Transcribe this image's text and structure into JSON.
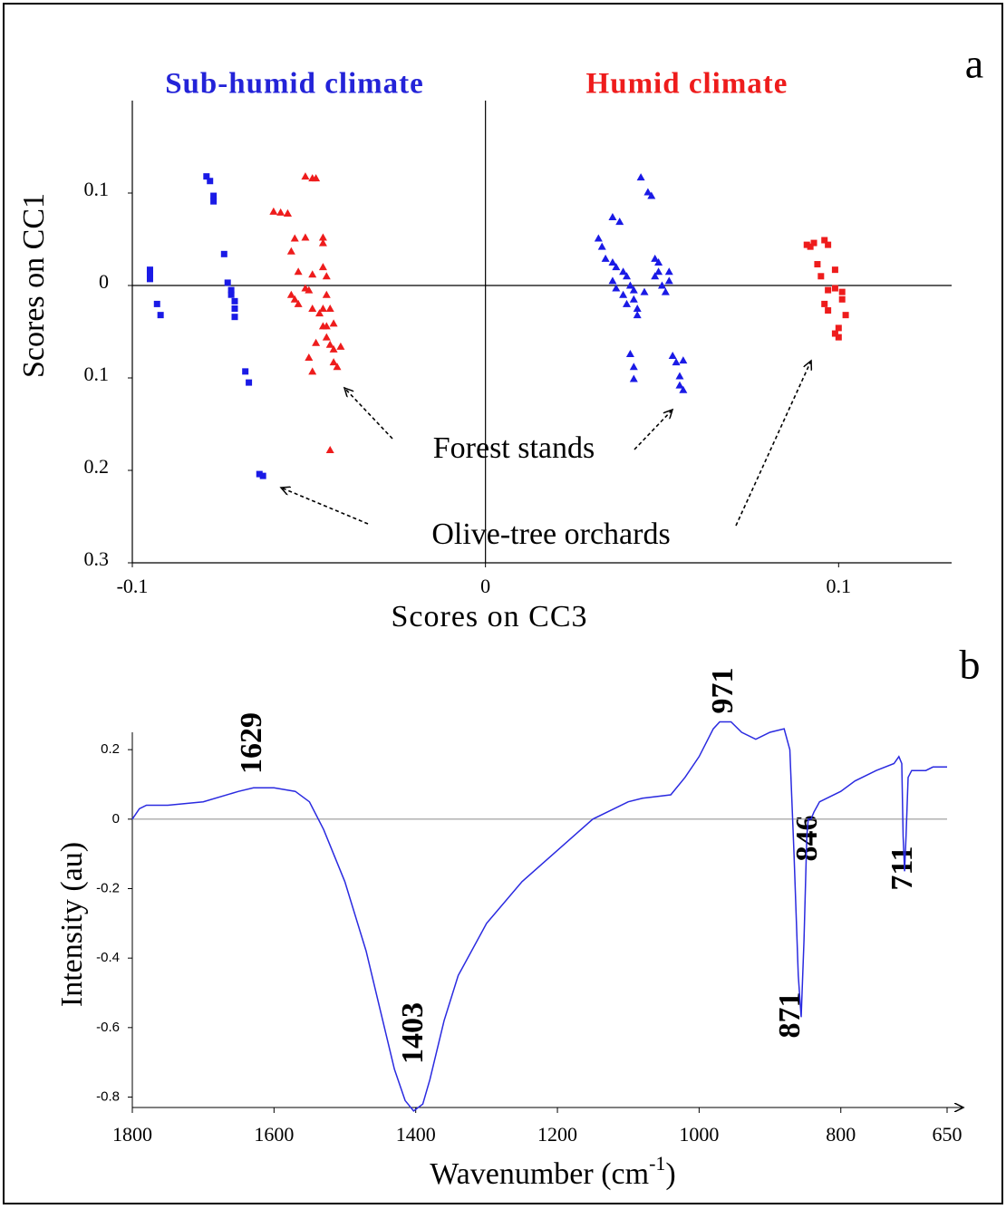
{
  "chart_data": [
    {
      "type": "scatter",
      "corner_label": "a",
      "xlabel": "Scores on CC3",
      "ylabel": "Scores on CC1",
      "annotations": [
        {
          "text": "Sub-humid climate",
          "color": "#2323d8"
        },
        {
          "text": "Humid climate",
          "color": "#ee1c1c"
        },
        {
          "text": "Forest stands"
        },
        {
          "text": "Olive-tree orchards"
        }
      ],
      "xlim": [
        -0.1,
        0.132
      ],
      "ylim": [
        -0.3,
        0.2
      ],
      "xticks": [
        {
          "value": -0.1,
          "label": "-0.1"
        },
        0,
        0.1
      ],
      "yticks": [
        0.1,
        0,
        {
          "value": -0.1,
          "label": "0.1"
        },
        {
          "value": -0.2,
          "label": "0.2"
        },
        {
          "value": -0.3,
          "label": "0.3"
        }
      ],
      "series": [
        {
          "color": "#1a1ae6",
          "marker": "square",
          "x": [
            -0.095,
            -0.095,
            -0.095,
            -0.093,
            -0.092,
            -0.079,
            -0.078,
            -0.077,
            -0.077,
            -0.074,
            -0.073,
            -0.072,
            -0.072,
            -0.071,
            -0.071,
            -0.071,
            -0.068,
            -0.067,
            -0.064,
            -0.063
          ],
          "values": [
            0.017,
            0.013,
            0.007,
            -0.02,
            -0.032,
            0.118,
            0.113,
            0.097,
            0.091,
            0.034,
            0.003,
            -0.005,
            -0.01,
            -0.017,
            -0.025,
            -0.034,
            -0.093,
            -0.105,
            -0.204,
            -0.206
          ]
        },
        {
          "color": "#ee1c1c",
          "marker": "triangle",
          "x": [
            -0.06,
            -0.058,
            -0.056,
            -0.056,
            -0.051,
            -0.049,
            -0.048,
            -0.055,
            -0.054,
            -0.053,
            -0.051,
            -0.055,
            -0.054,
            -0.053,
            -0.051,
            -0.05,
            -0.049,
            -0.049,
            -0.047,
            -0.046,
            -0.046,
            -0.046,
            -0.045,
            -0.045,
            -0.046,
            -0.044,
            -0.045,
            -0.043,
            -0.045,
            -0.044,
            -0.043,
            -0.041,
            -0.05,
            -0.049,
            -0.043,
            -0.042,
            -0.044,
            -0.046,
            -0.048
          ],
          "values": [
            0.08,
            0.079,
            0.078,
            0.078,
            0.118,
            0.116,
            0.116,
            0.037,
            0.051,
            0.015,
            0.052,
            -0.01,
            -0.015,
            -0.02,
            -0.003,
            -0.005,
            0.012,
            -0.025,
            -0.03,
            0.052,
            0.046,
            0.02,
            0.01,
            -0.01,
            -0.025,
            -0.025,
            -0.044,
            -0.041,
            -0.056,
            -0.064,
            -0.069,
            -0.066,
            -0.078,
            -0.093,
            -0.083,
            -0.088,
            -0.178,
            -0.044,
            -0.062
          ]
        },
        {
          "color": "#1a1ae6",
          "marker": "triangle",
          "x": [
            0.032,
            0.033,
            0.036,
            0.038,
            0.044,
            0.046,
            0.047,
            0.034,
            0.036,
            0.037,
            0.039,
            0.04,
            0.041,
            0.042,
            0.042,
            0.043,
            0.043,
            0.036,
            0.037,
            0.039,
            0.048,
            0.049,
            0.048,
            0.049,
            0.05,
            0.051,
            0.052,
            0.052,
            0.041,
            0.042,
            0.042,
            0.053,
            0.054,
            0.055,
            0.056,
            0.056,
            0.055,
            0.04,
            0.045
          ],
          "values": [
            0.051,
            0.042,
            0.074,
            0.069,
            0.117,
            0.101,
            0.097,
            0.029,
            0.025,
            0.02,
            0.015,
            0.01,
            0.0,
            -0.005,
            -0.015,
            -0.025,
            -0.032,
            0.005,
            -0.003,
            -0.01,
            0.029,
            0.025,
            0.01,
            0.015,
            0.0,
            -0.007,
            0.015,
            0.005,
            -0.074,
            -0.088,
            -0.101,
            -0.076,
            -0.083,
            -0.098,
            -0.113,
            -0.081,
            -0.108,
            -0.02,
            -0.007
          ]
        },
        {
          "color": "#ee1c1c",
          "marker": "square",
          "x": [
            0.091,
            0.092,
            0.093,
            0.096,
            0.097,
            0.094,
            0.095,
            0.099,
            0.097,
            0.099,
            0.096,
            0.097,
            0.101,
            0.101,
            0.102,
            0.1,
            0.1,
            0.099
          ],
          "values": [
            0.044,
            0.042,
            0.046,
            0.049,
            0.044,
            0.023,
            0.01,
            0.017,
            -0.005,
            -0.003,
            -0.02,
            -0.027,
            -0.007,
            -0.015,
            -0.032,
            -0.046,
            -0.056,
            -0.052
          ]
        }
      ]
    },
    {
      "type": "line",
      "corner_label": "b",
      "xlabel": [
        "Wavenumber (cm",
        "-1",
        ")"
      ],
      "ylabel": "Intensity (au)",
      "annotations": [
        {
          "text": "1629"
        },
        {
          "text": "1403"
        },
        {
          "text": "971"
        },
        {
          "text": "871"
        },
        {
          "text": "846"
        },
        {
          "text": "711"
        }
      ],
      "xlim": [
        1800,
        650
      ],
      "ylim": [
        -0.83,
        0.25
      ],
      "xticks": [
        1800,
        1600,
        1400,
        1200,
        1000,
        800,
        650
      ],
      "yticks": [
        0.2,
        0,
        -0.2,
        -0.4,
        -0.6,
        -0.8
      ],
      "series": [
        {
          "color": "#2a2ae0",
          "x": [
            1800,
            1790,
            1780,
            1750,
            1700,
            1650,
            1629,
            1600,
            1570,
            1550,
            1530,
            1500,
            1470,
            1450,
            1430,
            1415,
            1403,
            1390,
            1380,
            1360,
            1340,
            1300,
            1250,
            1200,
            1150,
            1100,
            1080,
            1040,
            1020,
            1000,
            980,
            971,
            955,
            940,
            920,
            900,
            880,
            872,
            866,
            860,
            856,
            852,
            848,
            846,
            842,
            838,
            830,
            800,
            780,
            750,
            725,
            718,
            714,
            712,
            710,
            708,
            705,
            700,
            680,
            670,
            650
          ],
          "values": [
            0.0,
            0.03,
            0.04,
            0.04,
            0.05,
            0.08,
            0.09,
            0.09,
            0.08,
            0.05,
            -0.03,
            -0.18,
            -0.38,
            -0.55,
            -0.72,
            -0.81,
            -0.84,
            -0.82,
            -0.75,
            -0.58,
            -0.45,
            -0.3,
            -0.18,
            -0.09,
            0.0,
            0.05,
            0.06,
            0.07,
            0.12,
            0.18,
            0.26,
            0.28,
            0.28,
            0.25,
            0.23,
            0.25,
            0.26,
            0.2,
            -0.1,
            -0.45,
            -0.57,
            -0.35,
            -0.05,
            0.0,
            0.0,
            0.02,
            0.05,
            0.08,
            0.11,
            0.14,
            0.16,
            0.18,
            0.16,
            -0.05,
            -0.15,
            -0.05,
            0.12,
            0.14,
            0.14,
            0.15,
            0.15
          ]
        }
      ]
    }
  ]
}
